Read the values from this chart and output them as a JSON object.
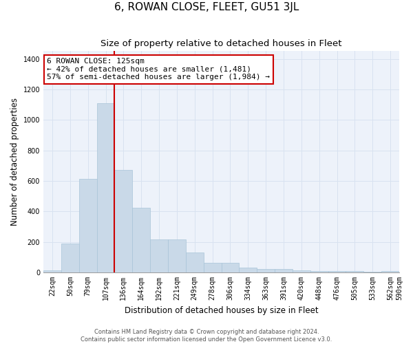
{
  "title": "6, ROWAN CLOSE, FLEET, GU51 3JL",
  "subtitle": "Size of property relative to detached houses in Fleet",
  "xlabel": "Distribution of detached houses by size in Fleet",
  "ylabel": "Number of detached properties",
  "bar_values": [
    15,
    190,
    615,
    1110,
    670,
    425,
    215,
    215,
    130,
    65,
    65,
    30,
    25,
    25,
    15,
    10,
    10,
    10,
    5,
    10
  ],
  "bar_labels": [
    "22sqm",
    "50sqm",
    "79sqm",
    "107sqm",
    "136sqm",
    "164sqm",
    "192sqm",
    "221sqm",
    "249sqm",
    "278sqm",
    "306sqm",
    "334sqm",
    "363sqm",
    "391sqm",
    "420sqm",
    "448sqm",
    "476sqm",
    "505sqm",
    "533sqm",
    "562sqm",
    "590sqm"
  ],
  "bar_color": "#c9d9e8",
  "bar_edge_color": "#a8c4d8",
  "grid_color": "#d8e2f0",
  "bg_color": "#edf2fa",
  "annotation_box_color": "#ffffff",
  "annotation_box_edge": "#cc0000",
  "red_line_color": "#cc0000",
  "annotation_title": "6 ROWAN CLOSE: 125sqm",
  "annotation_line1": "← 42% of detached houses are smaller (1,481)",
  "annotation_line2": "57% of semi-detached houses are larger (1,984) →",
  "ylim": [
    0,
    1450
  ],
  "yticks": [
    0,
    200,
    400,
    600,
    800,
    1000,
    1200,
    1400
  ],
  "footer1": "Contains HM Land Registry data © Crown copyright and database right 2024.",
  "footer2": "Contains public sector information licensed under the Open Government Licence v3.0.",
  "title_fontsize": 11,
  "subtitle_fontsize": 9.5,
  "axis_label_fontsize": 8.5,
  "tick_fontsize": 7,
  "annotation_fontsize": 8,
  "footer_fontsize": 6
}
